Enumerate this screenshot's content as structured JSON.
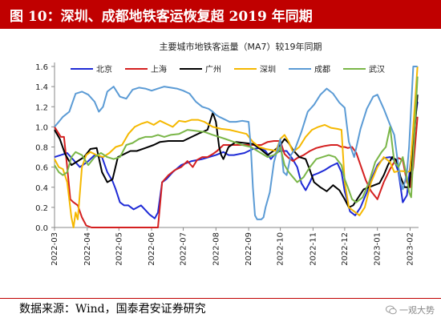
{
  "header": {
    "title": "图 10：深圳、成都地铁客运恢复超 2019 年同期"
  },
  "footer": {
    "source": "数据来源：Wind，国泰君安证券研究",
    "watermark": "一观大势"
  },
  "chart_data": {
    "type": "line",
    "title": "主要城市地铁客运量（MA7）较19年同期",
    "xlabel": "",
    "ylabel": "",
    "ylim": [
      0,
      1.6
    ],
    "yticks": [
      "0.0",
      "0.2",
      "0.4",
      "0.6",
      "0.8",
      "1.0",
      "1.2",
      "1.4",
      "1.6"
    ],
    "x_tick_labels": [
      "2022-03",
      "2022-04",
      "2022-05",
      "2022-06",
      "2022-07",
      "2022-08",
      "2022-09",
      "2022-10",
      "2022-11",
      "2022-12",
      "2023-01",
      "2023-02"
    ],
    "x_tick_dates": [
      0,
      31,
      61,
      92,
      122,
      153,
      184,
      214,
      245,
      275,
      306,
      337
    ],
    "xlim": [
      0,
      345
    ],
    "grid": false,
    "legend_position": "top",
    "series": [
      {
        "name": "北京",
        "color": "#1f2bd6",
        "x": [
          0,
          6,
          12,
          18,
          24,
          31,
          38,
          45,
          50,
          55,
          58,
          62,
          66,
          70,
          75,
          82,
          90,
          95,
          98,
          102,
          106,
          112,
          120,
          130,
          140,
          153,
          160,
          165,
          170,
          180,
          188,
          195,
          200,
          205,
          210,
          214,
          220,
          225,
          230,
          234,
          238,
          242,
          245,
          250,
          256,
          262,
          268,
          272,
          275,
          280,
          285,
          290,
          296,
          301,
          306,
          312,
          318,
          322,
          326,
          330,
          334,
          337,
          340,
          344
        ],
        "y": [
          0.7,
          0.72,
          0.74,
          0.67,
          0.6,
          0.65,
          0.72,
          0.7,
          0.55,
          0.46,
          0.38,
          0.25,
          0.22,
          0.22,
          0.18,
          0.22,
          0.13,
          0.09,
          0.15,
          0.45,
          0.48,
          0.55,
          0.62,
          0.66,
          0.68,
          0.72,
          0.75,
          0.72,
          0.72,
          0.74,
          0.78,
          0.79,
          0.76,
          0.68,
          0.74,
          0.76,
          0.76,
          0.69,
          0.6,
          0.44,
          0.37,
          0.45,
          0.52,
          0.54,
          0.57,
          0.61,
          0.64,
          0.55,
          0.36,
          0.16,
          0.12,
          0.2,
          0.35,
          0.5,
          0.62,
          0.69,
          0.7,
          0.67,
          0.55,
          0.25,
          0.32,
          0.6,
          0.93,
          1.25
        ]
      },
      {
        "name": "上海",
        "color": "#d42020",
        "x": [
          0,
          3,
          6,
          9,
          12,
          15,
          18,
          22,
          26,
          30,
          35,
          45,
          60,
          75,
          90,
          96,
          98,
          102,
          108,
          114,
          120,
          126,
          131,
          135,
          140,
          145,
          150,
          154,
          160,
          166,
          172,
          178,
          184,
          190,
          196,
          202,
          208,
          214,
          218,
          222,
          226,
          230,
          236,
          242,
          248,
          252,
          256,
          262,
          268,
          272,
          275,
          278,
          282,
          286,
          290,
          295,
          300,
          306,
          312,
          318,
          322,
          326,
          330,
          334,
          337,
          340,
          344
        ],
        "y": [
          1.0,
          0.95,
          0.9,
          0.9,
          0.6,
          0.28,
          0.25,
          0.22,
          0.1,
          0.02,
          0.0,
          0.0,
          0.0,
          0.0,
          0.0,
          0.0,
          0.0,
          0.45,
          0.52,
          0.57,
          0.6,
          0.66,
          0.6,
          0.67,
          0.7,
          0.7,
          0.73,
          0.76,
          0.82,
          0.82,
          0.82,
          0.82,
          0.82,
          0.82,
          0.82,
          0.85,
          0.86,
          0.86,
          0.73,
          0.69,
          0.66,
          0.69,
          0.72,
          0.76,
          0.79,
          0.8,
          0.81,
          0.82,
          0.82,
          0.8,
          0.8,
          0.79,
          0.8,
          0.74,
          0.62,
          0.47,
          0.36,
          0.28,
          0.45,
          0.58,
          0.65,
          0.69,
          0.67,
          0.45,
          0.4,
          0.6,
          1.1
        ]
      },
      {
        "name": "广州",
        "color": "#000000",
        "x": [
          0,
          5,
          10,
          16,
          22,
          28,
          34,
          40,
          45,
          50,
          55,
          60,
          66,
          72,
          78,
          86,
          94,
          100,
          108,
          115,
          122,
          130,
          138,
          145,
          150,
          153,
          156,
          158,
          160,
          165,
          172,
          180,
          188,
          195,
          202,
          210,
          214,
          218,
          222,
          226,
          232,
          238,
          242,
          246,
          252,
          258,
          264,
          270,
          275,
          279,
          283,
          288,
          293,
          298,
          303,
          308,
          312,
          316,
          320,
          324,
          328,
          332,
          336,
          340,
          344
        ],
        "y": [
          0.97,
          0.88,
          0.73,
          0.62,
          0.66,
          0.7,
          0.78,
          0.79,
          0.55,
          0.45,
          0.48,
          0.7,
          0.73,
          0.76,
          0.76,
          0.79,
          0.82,
          0.85,
          0.86,
          0.86,
          0.86,
          0.9,
          0.94,
          0.97,
          1.14,
          1.05,
          0.8,
          0.72,
          0.68,
          0.8,
          0.85,
          0.84,
          0.83,
          0.78,
          0.72,
          0.78,
          0.82,
          0.88,
          0.84,
          0.77,
          0.7,
          0.68,
          0.57,
          0.45,
          0.4,
          0.36,
          0.42,
          0.37,
          0.28,
          0.2,
          0.22,
          0.3,
          0.38,
          0.4,
          0.42,
          0.44,
          0.52,
          0.62,
          0.7,
          0.67,
          0.5,
          0.4,
          0.4,
          0.8,
          1.32
        ]
      },
      {
        "name": "深圳",
        "color": "#f5b800",
        "x": [
          0,
          4,
          8,
          12,
          16,
          18,
          20,
          22,
          26,
          30,
          34,
          40,
          46,
          52,
          58,
          64,
          70,
          76,
          82,
          88,
          94,
          100,
          106,
          112,
          118,
          124,
          130,
          136,
          142,
          150,
          158,
          166,
          174,
          182,
          188,
          194,
          200,
          206,
          210,
          214,
          218,
          222,
          226,
          232,
          238,
          244,
          250,
          256,
          262,
          268,
          272,
          275,
          279,
          284,
          289,
          294,
          300,
          306,
          312,
          318,
          322,
          326,
          330,
          334,
          337,
          340,
          344
        ],
        "y": [
          0.68,
          0.6,
          0.58,
          0.45,
          0.1,
          0.0,
          0.15,
          0.08,
          0.6,
          0.72,
          0.75,
          0.72,
          0.7,
          0.74,
          0.8,
          0.82,
          0.93,
          1.0,
          1.03,
          1.05,
          1.02,
          1.06,
          1.03,
          1.0,
          1.06,
          1.05,
          1.07,
          1.07,
          1.05,
          1.0,
          0.98,
          0.97,
          0.95,
          0.93,
          0.85,
          0.8,
          0.78,
          0.77,
          0.76,
          0.88,
          0.92,
          0.85,
          0.75,
          0.8,
          0.9,
          0.97,
          1.0,
          1.02,
          0.99,
          0.98,
          0.97,
          0.45,
          0.2,
          0.16,
          0.12,
          0.2,
          0.45,
          0.6,
          0.7,
          0.65,
          0.55,
          0.56,
          0.56,
          0.55,
          0.56,
          1.0,
          1.6
        ]
      },
      {
        "name": "成都",
        "color": "#5b9bd5",
        "x": [
          0,
          4,
          8,
          14,
          20,
          26,
          32,
          38,
          42,
          46,
          50,
          56,
          62,
          68,
          74,
          80,
          86,
          92,
          98,
          104,
          110,
          116,
          122,
          128,
          134,
          140,
          146,
          150,
          153,
          156,
          160,
          166,
          172,
          178,
          184,
          186,
          188,
          190,
          192,
          194,
          196,
          198,
          200,
          204,
          208,
          212,
          214,
          217,
          220,
          224,
          228,
          234,
          240,
          246,
          252,
          258,
          264,
          270,
          275,
          279,
          284,
          290,
          296,
          302,
          306,
          312,
          318,
          322,
          326,
          328,
          330,
          332,
          334,
          336,
          338,
          340,
          344
        ],
        "y": [
          1.0,
          1.05,
          1.1,
          1.15,
          1.33,
          1.35,
          1.32,
          1.25,
          1.15,
          1.2,
          1.35,
          1.4,
          1.3,
          1.28,
          1.37,
          1.39,
          1.38,
          1.36,
          1.38,
          1.4,
          1.39,
          1.38,
          1.36,
          1.33,
          1.25,
          1.2,
          1.18,
          1.15,
          1.12,
          1.1,
          1.08,
          1.05,
          1.05,
          1.06,
          1.05,
          0.8,
          0.4,
          0.12,
          0.08,
          0.08,
          0.08,
          0.1,
          0.2,
          0.35,
          0.65,
          0.8,
          0.88,
          0.55,
          0.52,
          0.72,
          0.78,
          0.95,
          1.15,
          1.22,
          1.32,
          1.38,
          1.33,
          1.24,
          1.19,
          0.85,
          0.7,
          0.98,
          1.18,
          1.3,
          1.32,
          1.18,
          1.02,
          0.92,
          0.6,
          0.45,
          0.38,
          0.45,
          0.55,
          0.8,
          1.2,
          1.6,
          1.6
        ]
      },
      {
        "name": "武汉",
        "color": "#7ab648",
        "x": [
          0,
          4,
          8,
          12,
          16,
          20,
          26,
          32,
          38,
          44,
          50,
          56,
          62,
          68,
          74,
          80,
          86,
          92,
          98,
          104,
          110,
          118,
          126,
          134,
          142,
          150,
          156,
          162,
          170,
          178,
          186,
          194,
          202,
          208,
          212,
          214,
          218,
          222,
          226,
          230,
          236,
          242,
          248,
          254,
          260,
          266,
          272,
          275,
          278,
          282,
          286,
          292,
          298,
          304,
          310,
          314,
          318,
          322,
          326,
          330,
          334,
          336,
          338,
          340,
          344
        ],
        "y": [
          0.62,
          0.55,
          0.52,
          0.55,
          0.7,
          0.75,
          0.72,
          0.62,
          0.7,
          0.74,
          0.7,
          0.68,
          0.7,
          0.82,
          0.84,
          0.88,
          0.9,
          0.9,
          0.92,
          0.9,
          0.92,
          0.93,
          0.97,
          0.96,
          0.95,
          0.92,
          0.9,
          0.88,
          0.85,
          0.82,
          0.8,
          0.75,
          0.7,
          0.72,
          0.75,
          0.8,
          0.62,
          0.55,
          0.5,
          0.45,
          0.5,
          0.6,
          0.68,
          0.7,
          0.72,
          0.7,
          0.62,
          0.48,
          0.4,
          0.28,
          0.25,
          0.3,
          0.45,
          0.65,
          0.75,
          0.8,
          1.0,
          0.65,
          0.6,
          0.7,
          0.5,
          0.35,
          0.3,
          0.7,
          1.5
        ]
      }
    ]
  }
}
